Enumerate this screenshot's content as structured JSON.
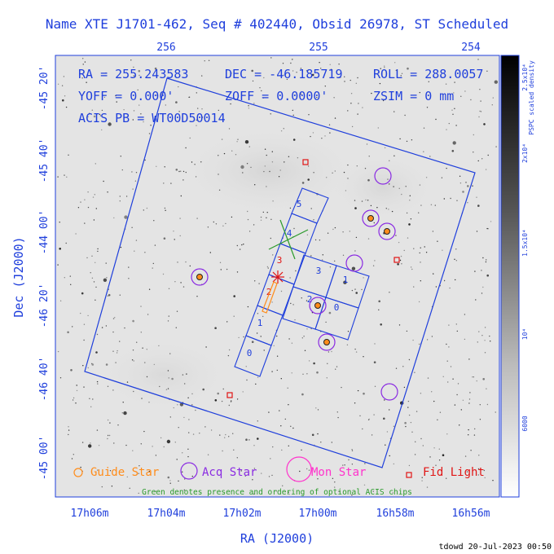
{
  "title": "Name XTE J1701-462, Seq # 402440, Obsid 26978, ST Scheduled",
  "colors": {
    "blue": "#1f3fdc",
    "guide": "#ff8c1a",
    "acq": "#8a2be2",
    "mon": "#ff33cc",
    "fid": "#e01414",
    "green": "#2a9a2a"
  },
  "top_axis": {
    "ticks": [
      "256",
      "255",
      "254"
    ]
  },
  "left_axis": {
    "label": "Dec (J2000)",
    "ticks": [
      "-45 20'",
      "-45 40'",
      "-44 00'",
      "-46 20'",
      "-46 40'",
      "-45 00'"
    ]
  },
  "bottom_axis": {
    "label": "RA (J2000)",
    "ticks": [
      "17h06m",
      "17h04m",
      "17h02m",
      "17h00m",
      "16h58m",
      "16h56m"
    ]
  },
  "colorbar": {
    "label": "PSPC scaled density",
    "ticks": [
      "2.5x10⁴",
      "2x10⁴",
      "1.5x10⁴",
      "10⁴",
      "6000"
    ]
  },
  "params": {
    "ra": "RA = 255.243583",
    "dec": "DEC = -46.185719",
    "roll": "ROLL = 288.0057",
    "yoff": "YOFF =   0.000'",
    "zoff": "ZOFF =  0.0000'",
    "zsim": "ZSIM = 0 mm",
    "acis_pb": "ACIS PB = WT00D50014"
  },
  "chip_labels": {
    "s0": "0",
    "s1": "1",
    "s2": "2",
    "s3": "3",
    "s4": "4",
    "s5": "5",
    "i0": "0",
    "i1": "1",
    "i2": "2",
    "i3": "3"
  },
  "legend": {
    "guide": "Guide Star",
    "acq": "Acq Star",
    "mon": "Mon Star",
    "fid": "Fid Light",
    "note": "Green denotes presence and ordering of optional ACIS chips"
  },
  "stamp": "tdowd 20-Jul-2023 00:50"
}
